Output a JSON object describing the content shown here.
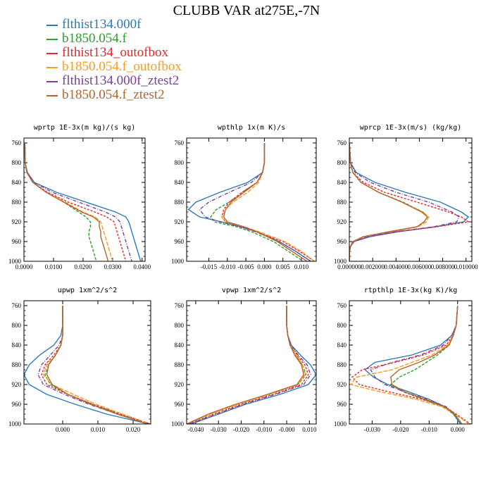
{
  "title": "CLUBB VAR at275E,-7N",
  "legend": [
    {
      "label": "flthist134.000f",
      "color": "#2b7bba"
    },
    {
      "label": "b1850.054.f",
      "color": "#2ca02c"
    },
    {
      "label": "flthist134_outofbox",
      "color": "#e8262c"
    },
    {
      "label": "b1850.054.f_outofbox",
      "color": "#ff9a1a"
    },
    {
      "label": "flthist134.000f_ztest2",
      "color": "#7b3fa0"
    },
    {
      "label": "b1850.054.f_ztest2",
      "color": "#b5652e"
    }
  ],
  "chart_data": [
    {
      "type": "line",
      "title": "wprtp  1E-3x(m kg)/(s kg)",
      "xlim": [
        0,
        0.041
      ],
      "ylim": [
        1000,
        750
      ],
      "xticks": [
        0,
        0.01,
        0.02,
        0.03,
        0.04
      ],
      "xtick_labels": [
        "0.0000",
        "0.0100",
        "0.0200",
        "0.0300",
        "0.0400"
      ],
      "yticks": [
        760,
        800,
        840,
        880,
        920,
        960,
        1000
      ],
      "y": [
        760,
        800,
        820,
        840,
        860,
        880,
        900,
        910,
        920,
        930,
        940,
        950,
        960,
        980,
        1000
      ],
      "series": [
        {
          "values": [
            0.0003,
            0.0004,
            0.0012,
            0.0035,
            0.011,
            0.021,
            0.031,
            0.0345,
            0.0355,
            0.036,
            0.0365,
            0.037,
            0.0375,
            0.0385,
            0.0395
          ]
        },
        {
          "values": [
            0.0003,
            0.0004,
            0.001,
            0.003,
            0.0075,
            0.0135,
            0.0185,
            0.021,
            0.0225,
            0.0225,
            0.022,
            0.022,
            0.0225,
            0.0235,
            0.0245
          ]
        },
        {
          "values": [
            0.0003,
            0.0004,
            0.001,
            0.003,
            0.008,
            0.015,
            0.024,
            0.028,
            0.0305,
            0.031,
            0.0315,
            0.032,
            0.0325,
            0.0335,
            0.0345
          ]
        },
        {
          "values": [
            0.0003,
            0.0004,
            0.001,
            0.003,
            0.0075,
            0.014,
            0.02,
            0.024,
            0.026,
            0.0265,
            0.027,
            0.0275,
            0.028,
            0.029,
            0.03
          ]
        },
        {
          "values": [
            0.0003,
            0.0004,
            0.0011,
            0.0035,
            0.0095,
            0.0185,
            0.0275,
            0.031,
            0.0325,
            0.033,
            0.0335,
            0.034,
            0.0345,
            0.0355,
            0.0365
          ]
        },
        {
          "values": [
            0.0003,
            0.0004,
            0.001,
            0.003,
            0.0075,
            0.0135,
            0.0195,
            0.0235,
            0.0255,
            0.0255,
            0.026,
            0.026,
            0.0265,
            0.0275,
            0.0285
          ]
        }
      ]
    },
    {
      "type": "line",
      "title": "wpthlp  1x(m K)/s",
      "xlim": [
        -0.021,
        0.014
      ],
      "ylim": [
        1000,
        750
      ],
      "xticks": [
        -0.015,
        -0.01,
        -0.005,
        0,
        0.005,
        0.01
      ],
      "xtick_labels": [
        "-0.015",
        "-0.010",
        "-0.005",
        "0.000",
        "0.005",
        "0.010"
      ],
      "yticks": [
        760,
        800,
        840,
        880,
        920,
        960,
        1000
      ],
      "y": [
        760,
        800,
        820,
        840,
        860,
        880,
        895,
        910,
        920,
        930,
        940,
        960,
        980,
        1000
      ],
      "series": [
        {
          "values": [
            0,
            0,
            -0.0005,
            -0.0045,
            -0.012,
            -0.0185,
            -0.0205,
            -0.0175,
            -0.0115,
            -0.0065,
            -0.002,
            0.004,
            0.0085,
            0.0125
          ]
        },
        {
          "values": [
            0,
            0,
            -0.0005,
            -0.002,
            -0.006,
            -0.0095,
            -0.013,
            -0.0145,
            -0.0135,
            -0.0075,
            -0.0035,
            0.0025,
            0.0065,
            0.0105
          ]
        },
        {
          "values": [
            0,
            0,
            -0.0005,
            -0.002,
            -0.006,
            -0.0095,
            -0.011,
            -0.0115,
            -0.0105,
            -0.006,
            -0.002,
            0.005,
            0.0095,
            0.0135
          ]
        },
        {
          "values": [
            0,
            0,
            -0.0005,
            -0.0015,
            -0.0045,
            -0.0085,
            -0.0105,
            -0.0115,
            -0.0105,
            -0.0055,
            -0.0015,
            0.0055,
            0.01,
            0.0135
          ]
        },
        {
          "values": [
            0,
            0,
            -0.0005,
            -0.0035,
            -0.0095,
            -0.015,
            -0.0175,
            -0.016,
            -0.012,
            -0.0065,
            -0.0025,
            0.004,
            0.0085,
            0.0125
          ]
        },
        {
          "values": [
            0,
            0,
            -0.0005,
            -0.002,
            -0.0055,
            -0.009,
            -0.0105,
            -0.011,
            -0.01,
            -0.0055,
            -0.002,
            0.0035,
            0.0075,
            0.0115
          ]
        }
      ]
    },
    {
      "type": "line",
      "title": "wprcp  1E-3x(m/s) (kg/kg)",
      "xlim": [
        0,
        0.0105
      ],
      "ylim": [
        1000,
        750
      ],
      "xticks": [
        0,
        0.002,
        0.004,
        0.006,
        0.008,
        0.01
      ],
      "xtick_labels": [
        "0.000000",
        "0.002000",
        "0.004000",
        "0.006000",
        "0.008000",
        "0.010000"
      ],
      "yticks": [
        760,
        800,
        840,
        880,
        920,
        960,
        1000
      ],
      "y": [
        760,
        800,
        820,
        840,
        860,
        880,
        900,
        910,
        920,
        930,
        940,
        950,
        960,
        970,
        980,
        1000
      ],
      "series": [
        {
          "values": [
            0,
            0.0001,
            0.0006,
            0.0022,
            0.0048,
            0.0078,
            0.0096,
            0.0102,
            0.0098,
            0.0074,
            0.0042,
            0.0018,
            0.0004,
            0.0001,
            0,
            0
          ]
        },
        {
          "values": [
            0,
            0.0001,
            0.0003,
            0.001,
            0.0025,
            0.0046,
            0.0063,
            0.0067,
            0.0064,
            0.0058,
            0.0035,
            0.0012,
            0.0003,
            0.0001,
            0,
            0
          ]
        },
        {
          "values": [
            0,
            0.0001,
            0.0003,
            0.0012,
            0.003,
            0.0058,
            0.0085,
            0.0096,
            0.0102,
            0.0075,
            0.004,
            0.0015,
            0.0004,
            0.0001,
            0,
            0
          ]
        },
        {
          "values": [
            0,
            0.0001,
            0.0003,
            0.001,
            0.0025,
            0.0045,
            0.0063,
            0.0068,
            0.0066,
            0.0059,
            0.0036,
            0.0013,
            0.0003,
            0.0001,
            0,
            0
          ]
        },
        {
          "values": [
            0,
            0.0001,
            0.0005,
            0.0018,
            0.004,
            0.0068,
            0.0088,
            0.0094,
            0.0092,
            0.0072,
            0.004,
            0.0016,
            0.0004,
            0.0001,
            0,
            0
          ]
        },
        {
          "values": [
            0,
            0.0001,
            0.0003,
            0.001,
            0.0025,
            0.0045,
            0.0062,
            0.0067,
            0.0064,
            0.0058,
            0.0034,
            0.0012,
            0.0003,
            0.0001,
            0,
            0
          ]
        }
      ]
    },
    {
      "type": "line",
      "title": "upwp   1xm^2/s^2",
      "xlim": [
        -0.011,
        0.025
      ],
      "ylim": [
        1000,
        750
      ],
      "xticks": [
        0,
        0.01,
        0.02
      ],
      "xtick_labels": [
        "0.000",
        "0.010",
        "0.020"
      ],
      "yticks": [
        760,
        800,
        840,
        880,
        920,
        960,
        1000
      ],
      "y": [
        760,
        800,
        820,
        840,
        860,
        880,
        900,
        920,
        940,
        960,
        980,
        1000
      ],
      "series": [
        {
          "values": [
            0,
            0,
            -0.0005,
            -0.0025,
            -0.0065,
            -0.0095,
            -0.011,
            -0.0095,
            -0.0045,
            0.0035,
            0.0125,
            0.0245
          ]
        },
        {
          "values": [
            0,
            0,
            0,
            -0.0005,
            -0.002,
            -0.004,
            -0.005,
            -0.0035,
            0.0015,
            0.0085,
            0.016,
            0.024
          ]
        },
        {
          "values": [
            0,
            0,
            0,
            -0.0005,
            -0.0025,
            -0.005,
            -0.006,
            -0.0045,
            0.0015,
            0.0085,
            0.0165,
            0.025
          ]
        },
        {
          "values": [
            0,
            0,
            0,
            -0.0005,
            -0.002,
            -0.0045,
            -0.0055,
            -0.003,
            0.003,
            0.0095,
            0.017,
            0.025
          ]
        },
        {
          "values": [
            0,
            0,
            0,
            -0.001,
            -0.0035,
            -0.006,
            -0.007,
            -0.0055,
            0.0005,
            0.0075,
            0.0155,
            0.0245
          ]
        },
        {
          "values": [
            0,
            0,
            0,
            -0.0005,
            -0.002,
            -0.004,
            -0.0045,
            -0.003,
            0.0015,
            0.008,
            0.0155,
            0.024
          ]
        }
      ]
    },
    {
      "type": "line",
      "title": "vpwp   1xm^2/s^2",
      "xlim": [
        -0.044,
        0.013
      ],
      "ylim": [
        1000,
        750
      ],
      "xticks": [
        -0.04,
        -0.03,
        -0.02,
        -0.01,
        0,
        0.01
      ],
      "xtick_labels": [
        "-0.040",
        "-0.030",
        "-0.020",
        "-0.010",
        "-0.000",
        "0.010"
      ],
      "yticks": [
        760,
        800,
        840,
        880,
        920,
        960,
        1000
      ],
      "y": [
        760,
        800,
        820,
        840,
        860,
        880,
        900,
        920,
        940,
        960,
        980,
        1000
      ],
      "series": [
        {
          "values": [
            0,
            0,
            0.0005,
            0.002,
            0.006,
            0.0105,
            0.013,
            0.0095,
            -0.003,
            -0.018,
            -0.03,
            -0.042
          ]
        },
        {
          "values": [
            0,
            0,
            0.0005,
            0.0015,
            0.004,
            0.007,
            0.0085,
            0.005,
            -0.008,
            -0.022,
            -0.034,
            -0.044
          ]
        },
        {
          "values": [
            0,
            0,
            0.0005,
            0.0015,
            0.0045,
            0.008,
            0.0095,
            0.0065,
            -0.006,
            -0.02,
            -0.032,
            -0.043
          ]
        },
        {
          "values": [
            0,
            0,
            0.0005,
            0.0015,
            0.004,
            0.007,
            0.008,
            0.005,
            -0.0075,
            -0.0215,
            -0.0335,
            -0.044
          ]
        },
        {
          "values": [
            0,
            0,
            0.0005,
            0.002,
            0.005,
            0.009,
            0.0105,
            0.0075,
            -0.005,
            -0.019,
            -0.031,
            -0.043
          ]
        },
        {
          "values": [
            0,
            0,
            0.0005,
            0.0015,
            0.0035,
            0.0065,
            0.0075,
            0.0045,
            -0.0085,
            -0.0225,
            -0.0345,
            -0.044
          ]
        }
      ]
    },
    {
      "type": "line",
      "title": "rtpthlp  1E-3x(kg K)/kg",
      "xlim": [
        -0.038,
        0.005
      ],
      "ylim": [
        1000,
        750
      ],
      "xticks": [
        -0.03,
        -0.02,
        -0.01,
        0
      ],
      "xtick_labels": [
        "-0.030",
        "-0.020",
        "-0.010",
        "0.000"
      ],
      "yticks": [
        760,
        800,
        840,
        880,
        920,
        960,
        1000
      ],
      "y": [
        760,
        800,
        820,
        840,
        860,
        875,
        890,
        905,
        920,
        935,
        950,
        965,
        980,
        1000
      ],
      "series": [
        {
          "values": [
            0,
            -0.0005,
            -0.002,
            -0.006,
            -0.016,
            -0.029,
            -0.0325,
            -0.0295,
            -0.0245,
            -0.017,
            -0.01,
            -0.0045,
            -0.0015,
            0.001
          ]
        },
        {
          "values": [
            0,
            -0.0005,
            -0.0015,
            -0.003,
            -0.007,
            -0.011,
            -0.015,
            -0.0205,
            -0.0235,
            -0.019,
            -0.012,
            -0.005,
            -0.0015,
            0.0015
          ]
        },
        {
          "values": [
            0,
            -0.0005,
            -0.0015,
            -0.004,
            -0.012,
            -0.022,
            -0.0335,
            -0.037,
            -0.0345,
            -0.024,
            -0.0125,
            -0.0045,
            -0.0005,
            0.0045
          ]
        },
        {
          "values": [
            0,
            -0.0005,
            -0.0015,
            -0.0035,
            -0.009,
            -0.016,
            -0.023,
            -0.0355,
            -0.0375,
            -0.027,
            -0.0145,
            -0.0055,
            -0.001,
            0.004
          ]
        },
        {
          "values": [
            0,
            -0.0005,
            -0.002,
            -0.005,
            -0.013,
            -0.023,
            -0.0305,
            -0.029,
            -0.0255,
            -0.0185,
            -0.0105,
            -0.004,
            -0.001,
            0.0015
          ]
        },
        {
          "values": [
            0,
            -0.0005,
            -0.0015,
            -0.003,
            -0.008,
            -0.0135,
            -0.0205,
            -0.0235,
            -0.023,
            -0.0185,
            -0.0115,
            -0.0045,
            -0.001,
            0.0015
          ]
        }
      ]
    }
  ]
}
